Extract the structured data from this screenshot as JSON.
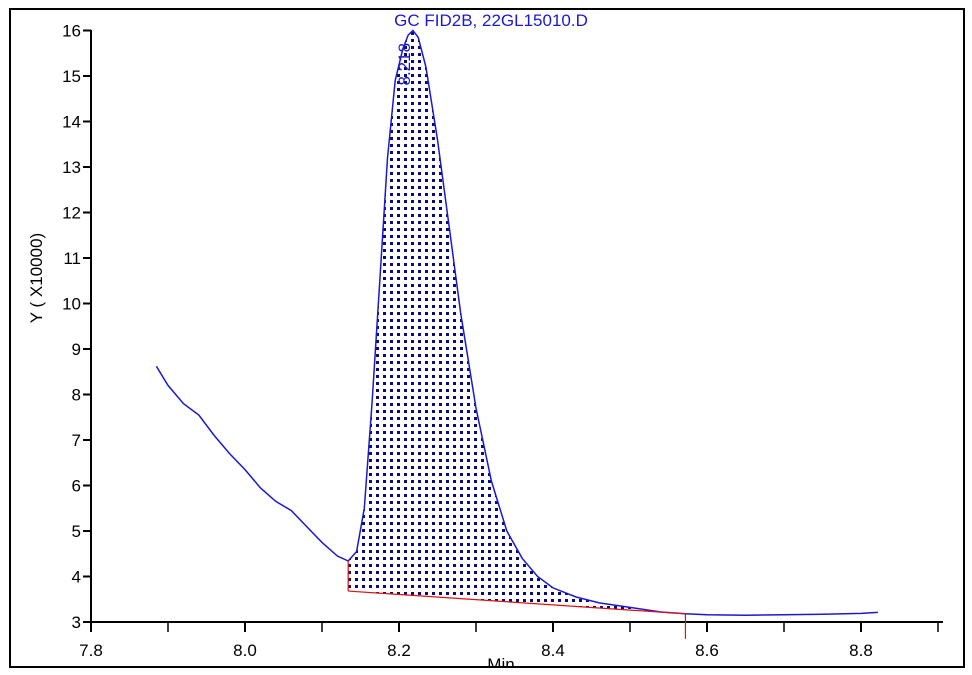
{
  "chart_data": {
    "type": "line",
    "title": "GC FID2B, 22GL15010.D",
    "xlabel": "Min",
    "ylabel": "Y ( X10000)",
    "xlim": [
      7.8,
      8.9
    ],
    "ylim": [
      3,
      16
    ],
    "x_ticks": [
      7.8,
      8.0,
      8.2,
      8.4,
      8.6,
      8.8
    ],
    "x_tick_labels": [
      "7.8",
      "8.0",
      "8.2",
      "8.4",
      "8.6",
      "8.8"
    ],
    "y_ticks": [
      3,
      4,
      5,
      6,
      7,
      8,
      9,
      10,
      11,
      12,
      13,
      14,
      15,
      16
    ],
    "y_tick_labels": [
      "3",
      "4",
      "5",
      "6",
      "7",
      "8",
      "9",
      "10",
      "11",
      "12",
      "13",
      "14",
      "15",
      "16"
    ],
    "grid": false,
    "series": [
      {
        "name": "",
        "color": "#1a1acc",
        "points": [
          [
            7.885,
            8.62
          ],
          [
            7.9,
            8.2
          ],
          [
            7.92,
            7.8
          ],
          [
            7.94,
            7.55
          ],
          [
            7.96,
            7.1
          ],
          [
            7.98,
            6.7
          ],
          [
            8.0,
            6.35
          ],
          [
            8.02,
            5.95
          ],
          [
            8.04,
            5.65
          ],
          [
            8.06,
            5.45
          ],
          [
            8.08,
            5.1
          ],
          [
            8.1,
            4.75
          ],
          [
            8.12,
            4.45
          ],
          [
            8.134,
            4.34
          ],
          [
            8.145,
            4.55
          ],
          [
            8.155,
            5.5
          ],
          [
            8.165,
            7.8
          ],
          [
            8.175,
            10.5
          ],
          [
            8.185,
            13.2
          ],
          [
            8.195,
            14.9
          ],
          [
            8.205,
            15.6
          ],
          [
            8.212,
            15.9
          ],
          [
            8.218,
            16.0
          ],
          [
            8.225,
            15.85
          ],
          [
            8.235,
            15.2
          ],
          [
            8.25,
            13.6
          ],
          [
            8.265,
            11.7
          ],
          [
            8.28,
            9.8
          ],
          [
            8.3,
            7.7
          ],
          [
            8.32,
            6.1
          ],
          [
            8.34,
            5.0
          ],
          [
            8.36,
            4.4
          ],
          [
            8.38,
            4.0
          ],
          [
            8.4,
            3.75
          ],
          [
            8.43,
            3.55
          ],
          [
            8.46,
            3.42
          ],
          [
            8.5,
            3.32
          ],
          [
            8.54,
            3.22
          ],
          [
            8.572,
            3.18
          ],
          [
            8.6,
            3.16
          ],
          [
            8.65,
            3.15
          ],
          [
            8.7,
            3.16
          ],
          [
            8.75,
            3.17
          ],
          [
            8.8,
            3.19
          ],
          [
            8.822,
            3.21
          ]
        ]
      }
    ],
    "baseline": {
      "color": "#dd1111",
      "start": [
        8.134,
        3.68
      ],
      "end": [
        8.572,
        3.18
      ]
    },
    "integration_markers": [
      {
        "x": 8.134,
        "y_top": 4.34,
        "y_bottom": 3.68
      },
      {
        "x": 8.572,
        "y_top": 3.18,
        "y_bottom": 2.85
      }
    ],
    "peak_labels": [
      {
        "x": 8.218,
        "y": 16.0,
        "text": "8.218"
      }
    ]
  }
}
